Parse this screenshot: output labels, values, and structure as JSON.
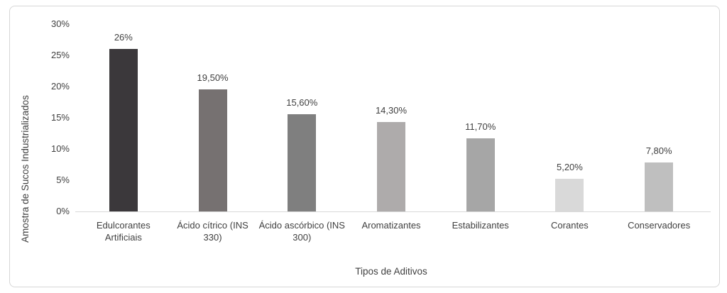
{
  "chart_data": {
    "type": "bar",
    "title": "",
    "categories": [
      "Edulcorantes Artificiais",
      "Ácido cítrico (INS 330)",
      "Ácido ascórbico (INS 300)",
      "Aromatizantes",
      "Estabilizantes",
      "Corantes",
      "Conservadores"
    ],
    "values": [
      26,
      19.5,
      15.6,
      14.3,
      11.7,
      5.2,
      7.8
    ],
    "value_labels": [
      "26%",
      "19,50%",
      "15,60%",
      "14,30%",
      "11,70%",
      "5,20%",
      "7,80%"
    ],
    "bar_colors": [
      "#3b383b",
      "#767171",
      "#7f7f7f",
      "#aeabab",
      "#a6a6a6",
      "#d9d9d9",
      "#bfbfbf"
    ],
    "xlabel": "Tipos de Aditivos",
    "ylabel": "Amostra de Sucos Industrializados",
    "ylim": [
      0,
      30
    ],
    "ytick_step": 5,
    "ytick_labels": [
      "0%",
      "5%",
      "10%",
      "15%",
      "20%",
      "25%",
      "30%"
    ],
    "grid": false,
    "legend": false,
    "colors": {
      "text": "#404040",
      "axis_line": "#d9d9d9",
      "frame_border": "#d6d6d6",
      "background": "#ffffff"
    }
  }
}
